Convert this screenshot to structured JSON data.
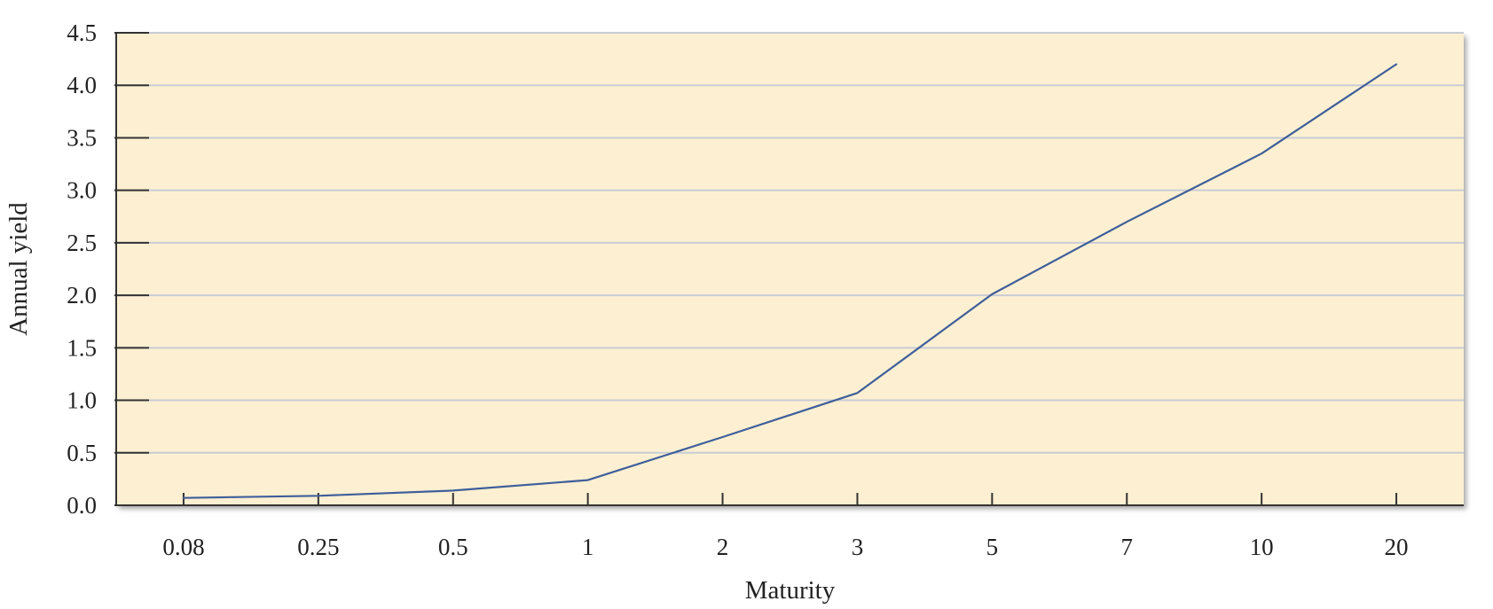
{
  "chart_data": {
    "type": "line",
    "title": "",
    "xlabel": "Maturity",
    "ylabel": "Annual yield",
    "categories": [
      "0.08",
      "0.25",
      "0.5",
      "1",
      "2",
      "3",
      "5",
      "7",
      "10",
      "20"
    ],
    "series": [
      {
        "values": [
          0.07,
          0.09,
          0.14,
          0.24,
          0.65,
          1.07,
          2.01,
          2.7,
          3.35,
          4.2
        ]
      }
    ],
    "ylim": [
      0,
      4.5
    ],
    "yticks": [
      "0.0",
      "0.5",
      "1.0",
      "1.5",
      "2.0",
      "2.5",
      "3.0",
      "3.5",
      "4.0",
      "4.5"
    ],
    "grid": true,
    "legend": "none",
    "colors": {
      "plot_background": "#fdf0d2",
      "line": "#3f5e9a",
      "grid": "#c9ccd6",
      "axis": "#333333"
    }
  }
}
